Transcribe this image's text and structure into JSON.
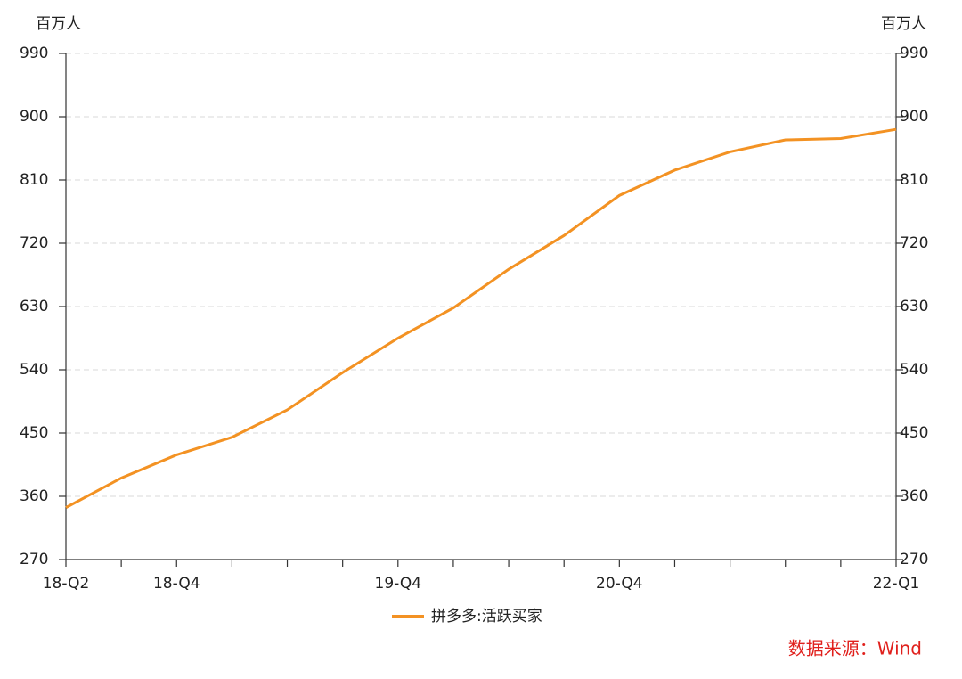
{
  "chart_data": {
    "type": "line",
    "y_unit": "百万人",
    "y2_unit": "百万人",
    "categories": [
      "18-Q2",
      null,
      "18-Q4",
      null,
      null,
      null,
      "19-Q4",
      null,
      null,
      null,
      "20-Q4",
      null,
      null,
      null,
      null,
      "22-Q1"
    ],
    "series": [
      {
        "name": "拼多多:活跃买家",
        "color": "#f39223",
        "values": [
          344,
          386,
          419,
          444,
          483,
          536,
          585,
          628,
          683,
          731,
          788,
          824,
          850,
          867,
          869,
          882
        ]
      }
    ],
    "ylim": [
      270,
      990
    ],
    "yticks": [
      270,
      360,
      450,
      540,
      630,
      720,
      810,
      900,
      990
    ],
    "y2lim": [
      270,
      990
    ],
    "y2ticks": [
      270,
      360,
      450,
      540,
      630,
      720,
      810,
      900,
      990
    ],
    "grid": true,
    "legend": "bottom",
    "source": "数据来源：Wind"
  }
}
